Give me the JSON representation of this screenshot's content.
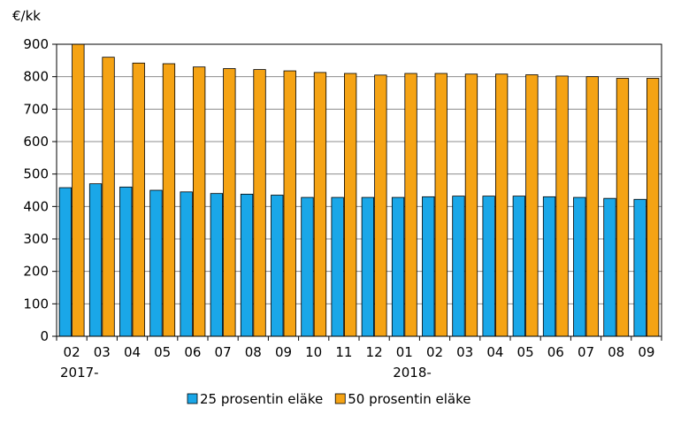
{
  "chart_data": {
    "type": "bar",
    "ylabel": "€/kk",
    "ylim": [
      0,
      900
    ],
    "yticks": [
      0,
      100,
      200,
      300,
      400,
      500,
      600,
      700,
      800,
      900
    ],
    "grid": "horizontal",
    "legend_position": "bottom",
    "categories": [
      "02",
      "03",
      "04",
      "05",
      "06",
      "07",
      "08",
      "09",
      "10",
      "11",
      "12",
      "01",
      "02",
      "03",
      "04",
      "05",
      "06",
      "07",
      "08",
      "09"
    ],
    "group_labels": [
      {
        "label": "2017-",
        "start_index": 0
      },
      {
        "label": "2018-",
        "start_index": 11
      }
    ],
    "series": [
      {
        "name": "25 prosentin eläke",
        "color": "#1aa7e8",
        "values": [
          458,
          470,
          460,
          450,
          445,
          440,
          438,
          435,
          428,
          428,
          428,
          428,
          430,
          432,
          432,
          432,
          430,
          428,
          425,
          422
        ]
      },
      {
        "name": "50 prosentin eläke",
        "color": "#f5a314",
        "values": [
          900,
          860,
          842,
          840,
          830,
          825,
          822,
          818,
          813,
          810,
          805,
          810,
          810,
          808,
          808,
          806,
          802,
          800,
          795,
          795
        ]
      }
    ]
  }
}
